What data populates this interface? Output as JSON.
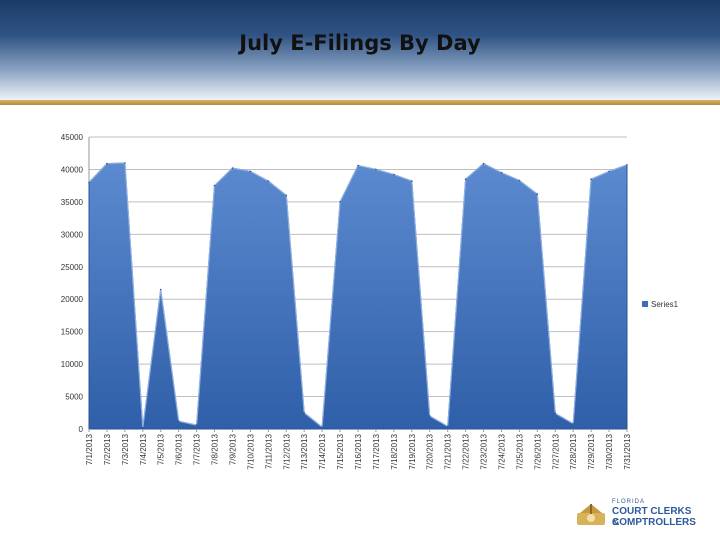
{
  "slide": {
    "title": "July E-Filings By Day"
  },
  "logo": {
    "line_small": "FLORIDA",
    "line1": "COURT CLERKS &",
    "line2": "COMPTROLLERS"
  },
  "colors": {
    "header_dark": "#1c3a66",
    "accent_gold": "#c9a052",
    "series_fill": "#3d6eb8",
    "series_fill_light": "#5c8ad0",
    "grid": "#bfbfbf"
  },
  "chart_data": {
    "type": "area",
    "title": "",
    "xlabel": "",
    "ylabel": "",
    "ylim": [
      0,
      45000
    ],
    "yticks": [
      0,
      5000,
      10000,
      15000,
      20000,
      25000,
      30000,
      35000,
      40000,
      45000
    ],
    "grid": true,
    "legend_position": "right",
    "categories": [
      "7/1/2013",
      "7/2/2013",
      "7/3/2013",
      "7/4/2013",
      "7/5/2013",
      "7/6/2013",
      "7/7/2013",
      "7/8/2013",
      "7/9/2013",
      "7/10/2013",
      "7/11/2013",
      "7/12/2013",
      "7/13/2013",
      "7/14/2013",
      "7/15/2013",
      "7/16/2013",
      "7/17/2013",
      "7/18/2013",
      "7/19/2013",
      "7/20/2013",
      "7/21/2013",
      "7/22/2013",
      "7/23/2013",
      "7/24/2013",
      "7/25/2013",
      "7/26/2013",
      "7/27/2013",
      "7/28/2013",
      "7/29/2013",
      "7/30/2013",
      "7/31/2013"
    ],
    "series": [
      {
        "name": "Series1",
        "values": [
          38000,
          40900,
          41000,
          200,
          21500,
          1200,
          600,
          37500,
          40200,
          39700,
          38200,
          36000,
          2500,
          300,
          35000,
          40600,
          40000,
          39200,
          38200,
          2000,
          400,
          38500,
          40900,
          39500,
          38300,
          36200,
          2400,
          800,
          38500,
          39700,
          40700
        ]
      }
    ]
  }
}
